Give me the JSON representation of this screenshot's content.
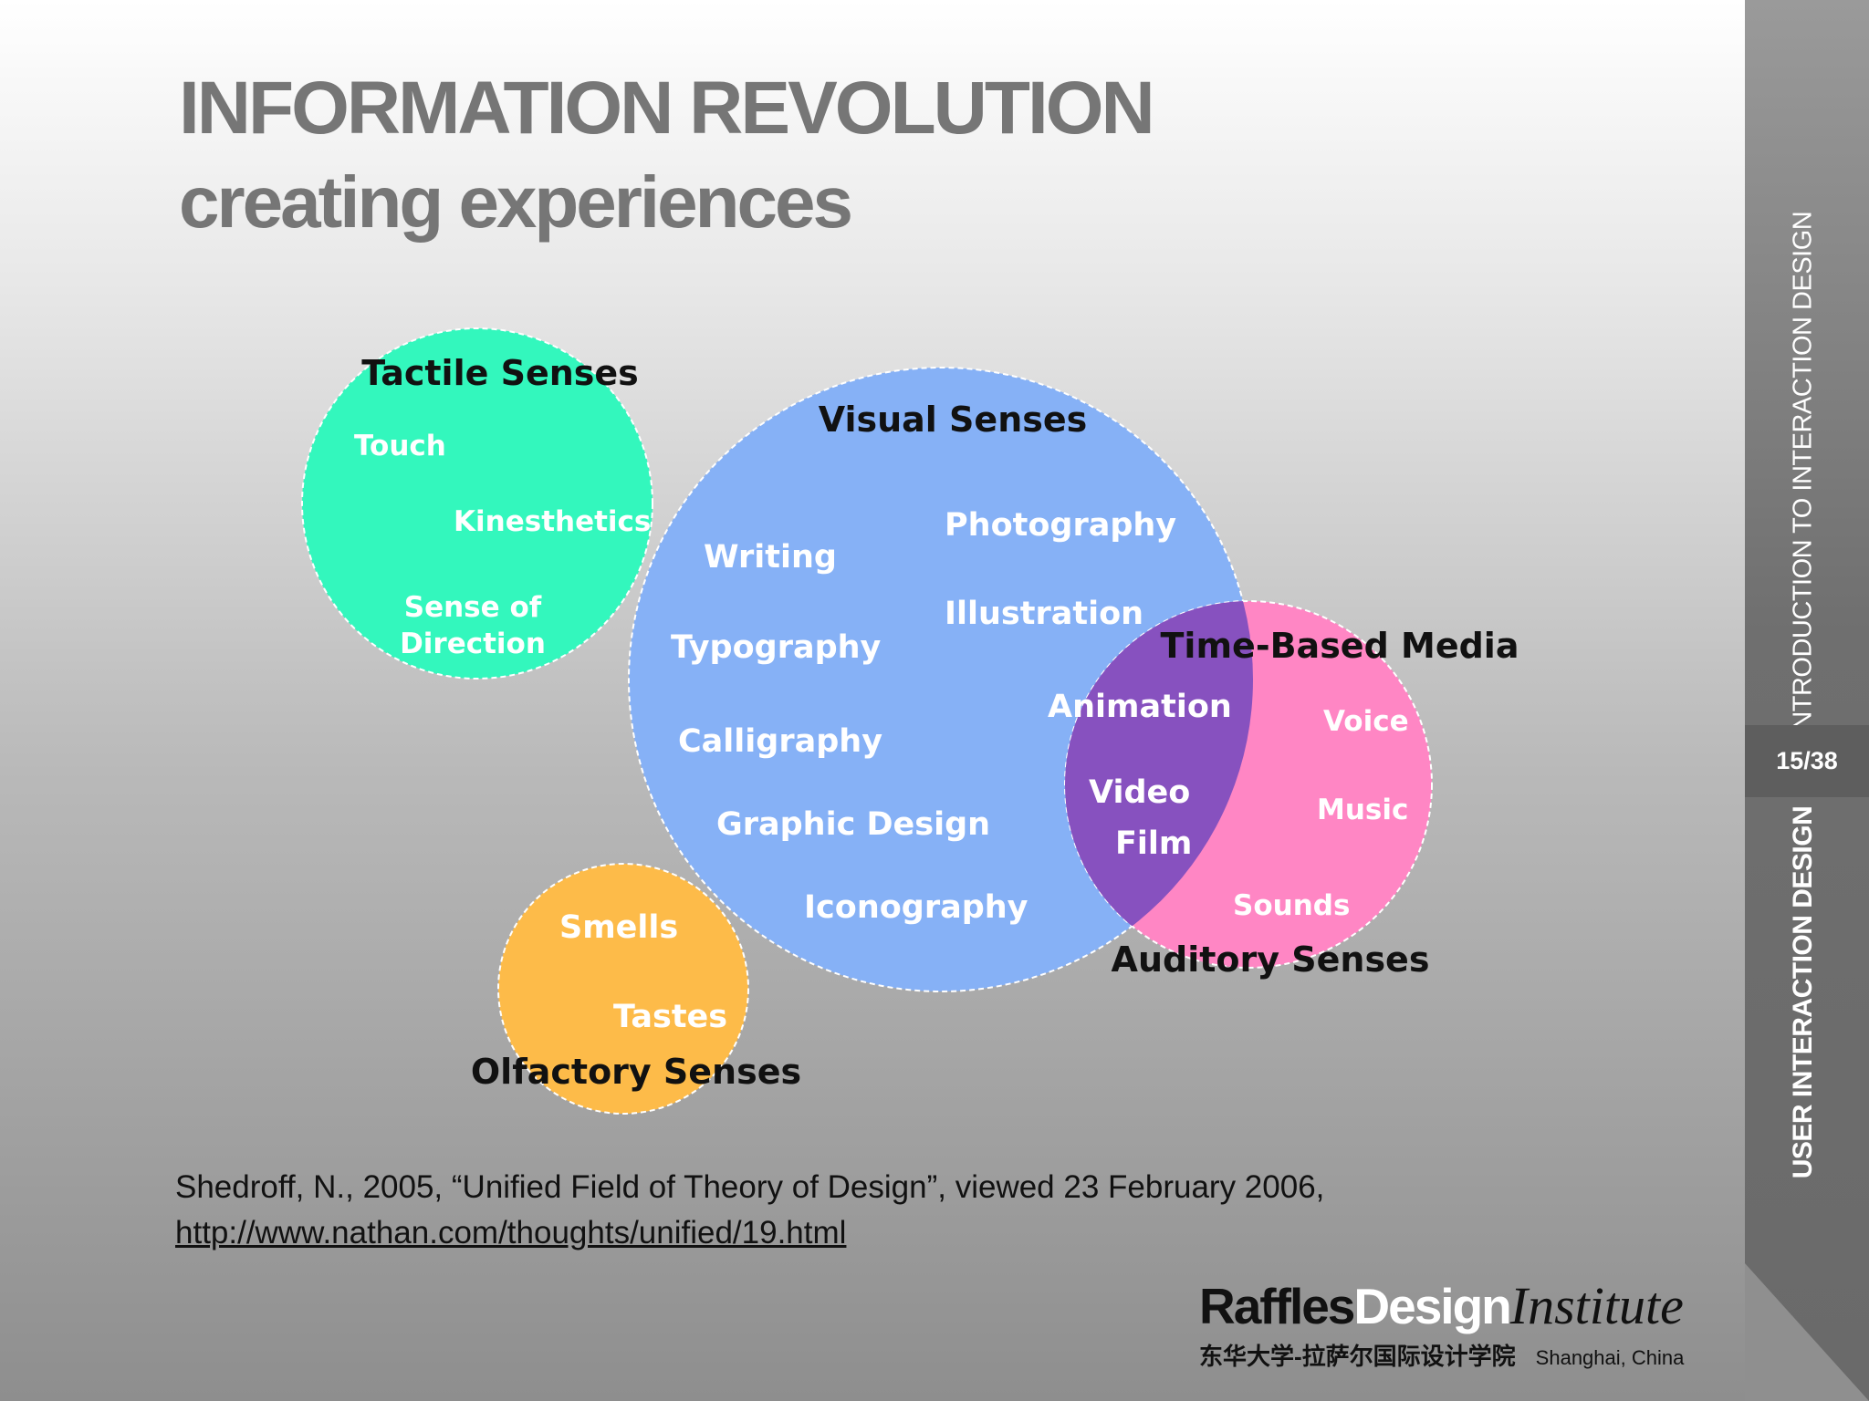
{
  "title": {
    "line1": "INFORMATION REVOLUTION",
    "line2": "creating experiences"
  },
  "sidebar": {
    "course_title": "INTRODUCTION TO INTERACTION DESIGN",
    "page_counter": "15/38",
    "section_title": "USER INTERACTION DESIGN"
  },
  "diagram": {
    "tactile": {
      "title": "Tactile Senses",
      "items": [
        "Touch",
        "Kinesthetics",
        "Sense of",
        "Direction"
      ],
      "color": "#33f7bd"
    },
    "visual": {
      "title": "Visual Senses",
      "items": [
        "Writing",
        "Typography",
        "Calligraphy",
        "Graphic Design",
        "Iconography",
        "Photography",
        "Illustration"
      ],
      "color": "#86b1f6"
    },
    "time_based": {
      "title": "Time-Based Media",
      "items": [
        "Animation",
        "Video",
        "Film"
      ],
      "overlap_color": "#8751bf"
    },
    "auditory": {
      "title": "Auditory Senses",
      "items": [
        "Voice",
        "Music",
        "Sounds"
      ],
      "color": "#ff86c4"
    },
    "olfactory": {
      "title": "Olfactory Senses",
      "items": [
        "Smells",
        "Tastes"
      ],
      "color": "#fdbb49"
    }
  },
  "citation": {
    "text": "Shedroff, N., 2005, “Unified Field of Theory of Design”, viewed 23 February 2006,",
    "url": "http://www.nathan.com/thoughts/unified/19.html"
  },
  "logo": {
    "raffles": "Raffles",
    "design": "Design",
    "institute": "Institute",
    "chinese": "东华大学-拉萨尔国际设计学院",
    "city": "Shanghai, China"
  }
}
